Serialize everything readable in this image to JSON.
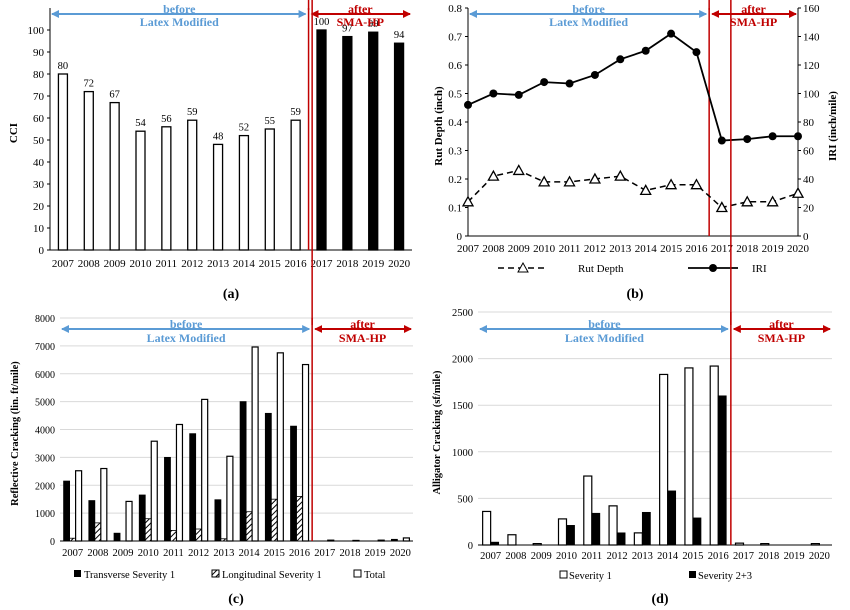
{
  "panels": {
    "a": {
      "caption": "(a)",
      "ylabel": "CCI",
      "ylim": [
        0,
        110
      ],
      "yticks": [
        0,
        10,
        20,
        30,
        40,
        50,
        60,
        70,
        80,
        90,
        100
      ],
      "categories": [
        "2007",
        "2008",
        "2009",
        "2010",
        "2011",
        "2012",
        "2013",
        "2014",
        "2015",
        "2016",
        "2017",
        "2018",
        "2019",
        "2020"
      ],
      "values": [
        80,
        72,
        67,
        54,
        56,
        59,
        48,
        52,
        55,
        59,
        100,
        97,
        99,
        94
      ],
      "data_labels": [
        "80",
        "72",
        "67",
        "54",
        "56",
        "59",
        "48",
        "52",
        "55",
        "59",
        "100",
        "97",
        "99",
        "94"
      ],
      "before_line1": "before",
      "before_line2": "Latex Modified",
      "after_line1": "after",
      "after_line2": "SMA-HP"
    },
    "b": {
      "caption": "(b)",
      "ylabel_left": "Rut Depth (inch)",
      "ylabel_right": "IRI (inch/mile)",
      "ylim_left": [
        0,
        0.8
      ],
      "ylim_right": [
        0,
        160
      ],
      "yticks_left": [
        "0",
        "0.1",
        "0.2",
        "0.3",
        "0.4",
        "0.5",
        "0.6",
        "0.7",
        "0.8"
      ],
      "yticks_right": [
        "0",
        "20",
        "40",
        "60",
        "80",
        "100",
        "120",
        "140",
        "160"
      ],
      "categories": [
        "2007",
        "2008",
        "2009",
        "2010",
        "2011",
        "2012",
        "2013",
        "2014",
        "2015",
        "2016",
        "2017",
        "2018",
        "2019",
        "2020"
      ],
      "rut": [
        0.12,
        0.21,
        0.23,
        0.19,
        0.19,
        0.2,
        0.21,
        0.16,
        0.18,
        0.18,
        0.1,
        0.12,
        0.12,
        0.15
      ],
      "iri": [
        92,
        100,
        99,
        108,
        107,
        113,
        124,
        130,
        142,
        129,
        67,
        68,
        70,
        70
      ],
      "legend_rut": "Rut Depth",
      "legend_iri": "IRI",
      "before_line1": "before",
      "before_line2": "Latex Modified",
      "after_line1": "after",
      "after_line2": "SMA-HP"
    },
    "c": {
      "caption": "(c)",
      "ylabel": "Reflective Cracking (lin. ft/mile)",
      "ylim": [
        0,
        8000
      ],
      "yticks": [
        "0",
        "1000",
        "2000",
        "3000",
        "4000",
        "5000",
        "6000",
        "7000",
        "8000"
      ],
      "categories": [
        "2007",
        "2008",
        "2009",
        "2010",
        "2011",
        "2012",
        "2013",
        "2014",
        "2015",
        "2016",
        "2017",
        "2018",
        "2019",
        "2020"
      ],
      "transverse": [
        2150,
        1450,
        280,
        1650,
        3000,
        3850,
        1480,
        5000,
        4580,
        4120,
        0,
        0,
        0,
        60
      ],
      "longitudinal": [
        100,
        650,
        0,
        800,
        380,
        430,
        80,
        1050,
        1500,
        1600,
        0,
        0,
        0,
        0
      ],
      "total": [
        2520,
        2600,
        1420,
        3580,
        4180,
        5080,
        3040,
        6960,
        6750,
        6330,
        30,
        20,
        30,
        110
      ],
      "legend_transverse": "Transverse Severity 1",
      "legend_longitudinal": "Longitudinal Severity 1",
      "legend_total": "Total",
      "before_line1": "before",
      "before_line2": "Latex Modified",
      "after_line1": "after",
      "after_line2": "SMA-HP"
    },
    "d": {
      "caption": "(d)",
      "ylabel": "Alligator Cracking (sf/mile)",
      "ylim": [
        0,
        2500
      ],
      "yticks": [
        "0",
        "500",
        "1000",
        "1500",
        "2000",
        "2500"
      ],
      "categories": [
        "2007",
        "2008",
        "2009",
        "2010",
        "2011",
        "2012",
        "2013",
        "2014",
        "2015",
        "2016",
        "2017",
        "2018",
        "2019",
        "2020"
      ],
      "severity1": [
        360,
        110,
        15,
        280,
        740,
        420,
        130,
        1830,
        1900,
        1920,
        20,
        15,
        0,
        15
      ],
      "severity23": [
        30,
        0,
        0,
        210,
        340,
        130,
        350,
        580,
        290,
        1600,
        0,
        0,
        0,
        0
      ],
      "legend_s1": "Severity 1",
      "legend_s23": "Severity 2+3",
      "before_line1": "before",
      "before_line2": "Latex Modified",
      "after_line1": "after",
      "after_line2": "SMA-HP"
    }
  },
  "colors": {
    "before_arrow": "#5B9BD5",
    "after_arrow": "#C00000",
    "bars": "#000000",
    "grid": "#D9D9D9"
  },
  "chart_data": [
    {
      "type": "bar",
      "panel": "(a)",
      "categories": [
        "2007",
        "2008",
        "2009",
        "2010",
        "2011",
        "2012",
        "2013",
        "2014",
        "2015",
        "2016",
        "2017",
        "2018",
        "2019",
        "2020"
      ],
      "values": [
        80,
        72,
        67,
        54,
        56,
        59,
        48,
        52,
        55,
        59,
        100,
        97,
        99,
        94
      ],
      "ylabel": "CCI",
      "ylim": [
        0,
        110
      ],
      "grid": false
    },
    {
      "type": "line",
      "panel": "(b)",
      "categories": [
        "2007",
        "2008",
        "2009",
        "2010",
        "2011",
        "2012",
        "2013",
        "2014",
        "2015",
        "2016",
        "2017",
        "2018",
        "2019",
        "2020"
      ],
      "series": [
        {
          "name": "Rut Depth",
          "axis": "left",
          "values": [
            0.12,
            0.21,
            0.23,
            0.19,
            0.19,
            0.2,
            0.21,
            0.16,
            0.18,
            0.18,
            0.1,
            0.12,
            0.12,
            0.15
          ]
        },
        {
          "name": "IRI",
          "axis": "right",
          "values": [
            92,
            100,
            99,
            108,
            107,
            113,
            124,
            130,
            142,
            129,
            67,
            68,
            70,
            70
          ]
        }
      ],
      "ylabel": "Rut Depth (inch)",
      "ylabel_right": "IRI (inch/mile)",
      "ylim": [
        0,
        0.8
      ],
      "ylim_right": [
        0,
        160
      ],
      "legend": "bottom"
    },
    {
      "type": "bar",
      "panel": "(c)",
      "categories": [
        "2007",
        "2008",
        "2009",
        "2010",
        "2011",
        "2012",
        "2013",
        "2014",
        "2015",
        "2016",
        "2017",
        "2018",
        "2019",
        "2020"
      ],
      "series": [
        {
          "name": "Transverse Severity 1",
          "values": [
            2150,
            1450,
            280,
            1650,
            3000,
            3850,
            1480,
            5000,
            4580,
            4120,
            0,
            0,
            0,
            60
          ]
        },
        {
          "name": "Longitudinal Severity 1",
          "values": [
            100,
            650,
            0,
            800,
            380,
            430,
            80,
            1050,
            1500,
            1600,
            0,
            0,
            0,
            0
          ]
        },
        {
          "name": "Total",
          "values": [
            2520,
            2600,
            1420,
            3580,
            4180,
            5080,
            3040,
            6960,
            6750,
            6330,
            30,
            20,
            30,
            110
          ]
        }
      ],
      "ylabel": "Reflective Cracking (lin. ft/mile)",
      "ylim": [
        0,
        8000
      ],
      "grid": true,
      "legend": "bottom"
    },
    {
      "type": "bar",
      "panel": "(d)",
      "categories": [
        "2007",
        "2008",
        "2009",
        "2010",
        "2011",
        "2012",
        "2013",
        "2014",
        "2015",
        "2016",
        "2017",
        "2018",
        "2019",
        "2020"
      ],
      "series": [
        {
          "name": "Severity 1",
          "values": [
            360,
            110,
            15,
            280,
            740,
            420,
            130,
            1830,
            1900,
            1920,
            20,
            15,
            0,
            15
          ]
        },
        {
          "name": "Severity 2+3",
          "values": [
            30,
            0,
            0,
            210,
            340,
            130,
            350,
            580,
            290,
            1600,
            0,
            0,
            0,
            0
          ]
        }
      ],
      "ylabel": "Alligator Cracking (sf/mile)",
      "ylim": [
        0,
        2500
      ],
      "grid": true,
      "legend": "bottom"
    }
  ]
}
